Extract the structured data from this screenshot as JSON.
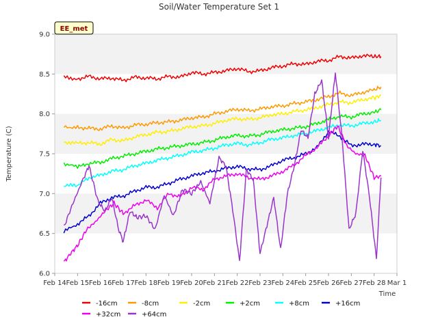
{
  "chart_data": {
    "type": "line",
    "title": "Soil/Water Temperature Set 1",
    "xlabel": "Time",
    "ylabel": "Temperature (C)",
    "badge": "EE_met",
    "ylim": [
      6.0,
      9.0
    ],
    "xlim": [
      "Feb 14",
      "Mar 1"
    ],
    "yticks": [
      "6.0",
      "6.5",
      "7.0",
      "7.5",
      "8.0",
      "8.5",
      "9.0"
    ],
    "xticks": [
      "Feb 14",
      "Feb 15",
      "Feb 16",
      "Feb 17",
      "Feb 18",
      "Feb 19",
      "Feb 20",
      "Feb 21",
      "Feb 22",
      "Feb 23",
      "Feb 24",
      "Feb 25",
      "Feb 26",
      "Feb 27",
      "Feb 28",
      "Mar 1"
    ],
    "legend_position": "bottom",
    "grid": "alternating bands",
    "series": [
      {
        "name": "-16cm",
        "color": "#ee0000",
        "x": [
          14.4,
          15.0,
          15.5,
          16.0,
          16.5,
          17.0,
          17.5,
          18.0,
          18.5,
          19.0,
          19.5,
          20.0,
          20.5,
          21.0,
          21.5,
          22.0,
          22.5,
          23.0,
          23.5,
          24.0,
          24.5,
          25.0,
          25.5,
          26.0,
          26.5,
          27.0,
          27.5,
          28.0,
          28.3
        ],
        "y": [
          8.46,
          8.44,
          8.47,
          8.44,
          8.45,
          8.42,
          8.46,
          8.45,
          8.44,
          8.47,
          8.46,
          8.52,
          8.5,
          8.52,
          8.54,
          8.57,
          8.53,
          8.54,
          8.58,
          8.6,
          8.63,
          8.62,
          8.66,
          8.67,
          8.72,
          8.7,
          8.73,
          8.72,
          8.72
        ]
      },
      {
        "name": "-8cm",
        "color": "#ff9900",
        "x": [
          14.4,
          15.0,
          15.5,
          16.0,
          16.5,
          17.0,
          17.5,
          18.0,
          18.5,
          19.0,
          19.5,
          20.0,
          20.5,
          21.0,
          21.5,
          22.0,
          22.5,
          23.0,
          23.5,
          24.0,
          24.5,
          25.0,
          25.5,
          26.0,
          26.5,
          27.0,
          27.5,
          28.0,
          28.3
        ],
        "y": [
          7.84,
          7.83,
          7.82,
          7.81,
          7.85,
          7.82,
          7.86,
          7.87,
          7.89,
          7.9,
          7.92,
          7.95,
          7.96,
          8.0,
          8.03,
          8.06,
          8.04,
          8.06,
          8.09,
          8.1,
          8.13,
          8.15,
          8.18,
          8.22,
          8.26,
          8.23,
          8.27,
          8.3,
          8.34
        ]
      },
      {
        "name": "-2cm",
        "color": "#ffee00",
        "x": [
          14.4,
          15.0,
          15.5,
          16.0,
          16.5,
          17.0,
          17.5,
          18.0,
          18.5,
          19.0,
          19.5,
          20.0,
          20.5,
          21.0,
          21.5,
          22.0,
          22.5,
          23.0,
          23.5,
          24.0,
          24.5,
          25.0,
          25.5,
          26.0,
          26.5,
          27.0,
          27.5,
          28.0,
          28.3
        ],
        "y": [
          7.65,
          7.63,
          7.64,
          7.62,
          7.68,
          7.66,
          7.71,
          7.74,
          7.77,
          7.78,
          7.81,
          7.84,
          7.85,
          7.88,
          7.92,
          7.94,
          7.93,
          7.95,
          7.99,
          8.0,
          8.03,
          8.05,
          8.08,
          8.12,
          8.15,
          8.14,
          8.18,
          8.2,
          8.23
        ]
      },
      {
        "name": "+2cm",
        "color": "#00ee00",
        "x": [
          14.4,
          15.0,
          15.5,
          16.0,
          16.5,
          17.0,
          17.5,
          18.0,
          18.5,
          19.0,
          19.5,
          20.0,
          20.5,
          21.0,
          21.5,
          22.0,
          22.5,
          23.0,
          23.5,
          24.0,
          24.5,
          25.0,
          25.5,
          26.0,
          26.5,
          27.0,
          27.5,
          28.0,
          28.3
        ],
        "y": [
          7.38,
          7.33,
          7.38,
          7.39,
          7.44,
          7.47,
          7.5,
          7.53,
          7.56,
          7.58,
          7.6,
          7.62,
          7.64,
          7.67,
          7.71,
          7.73,
          7.72,
          7.74,
          7.78,
          7.8,
          7.82,
          7.84,
          7.88,
          7.93,
          7.97,
          7.96,
          8.0,
          8.02,
          8.05
        ]
      },
      {
        "name": "+8cm",
        "color": "#00ffff",
        "x": [
          14.4,
          15.0,
          15.5,
          16.0,
          16.5,
          17.0,
          17.5,
          18.0,
          18.5,
          19.0,
          19.5,
          20.0,
          20.5,
          21.0,
          21.5,
          22.0,
          22.5,
          23.0,
          23.5,
          24.0,
          24.5,
          25.0,
          25.5,
          26.0,
          26.5,
          27.0,
          27.5,
          28.0,
          28.3
        ],
        "y": [
          7.1,
          7.1,
          7.2,
          7.23,
          7.28,
          7.3,
          7.35,
          7.38,
          7.42,
          7.45,
          7.48,
          7.52,
          7.54,
          7.57,
          7.61,
          7.63,
          7.61,
          7.64,
          7.68,
          7.7,
          7.73,
          7.75,
          7.79,
          7.83,
          7.86,
          7.85,
          7.88,
          7.9,
          7.92
        ]
      },
      {
        "name": "+16cm",
        "color": "#0000cc",
        "x": [
          14.4,
          15.0,
          15.5,
          16.0,
          16.5,
          17.0,
          17.5,
          18.0,
          18.5,
          19.0,
          19.5,
          20.0,
          20.5,
          21.0,
          21.5,
          22.0,
          22.5,
          23.0,
          23.5,
          24.0,
          24.5,
          25.0,
          25.5,
          26.0,
          26.5,
          27.0,
          27.5,
          28.0,
          28.3
        ],
        "y": [
          6.52,
          6.62,
          6.72,
          6.88,
          6.95,
          6.97,
          7.03,
          7.08,
          7.08,
          7.13,
          7.18,
          7.22,
          7.26,
          7.28,
          7.32,
          7.34,
          7.31,
          7.3,
          7.35,
          7.42,
          7.45,
          7.5,
          7.58,
          7.78,
          7.72,
          7.6,
          7.62,
          7.62,
          7.6
        ]
      },
      {
        "name": "+32cm",
        "color": "#ee00ee",
        "x": [
          14.4,
          14.7,
          15.0,
          15.4,
          15.8,
          16.2,
          16.6,
          17.0,
          17.5,
          18.0,
          18.5,
          19.0,
          19.5,
          20.0,
          20.5,
          21.0,
          21.5,
          22.0,
          22.5,
          23.0,
          23.5,
          24.0,
          24.5,
          25.0,
          25.5,
          26.0,
          26.4,
          26.8,
          27.2,
          27.6,
          28.0,
          28.3
        ],
        "y": [
          6.14,
          6.25,
          6.35,
          6.55,
          6.65,
          6.78,
          6.88,
          6.75,
          6.85,
          6.92,
          6.82,
          7.0,
          6.96,
          7.08,
          7.05,
          7.18,
          7.22,
          7.25,
          7.2,
          7.18,
          7.22,
          7.28,
          7.36,
          7.48,
          7.58,
          7.72,
          7.85,
          7.6,
          7.5,
          7.48,
          7.2,
          7.22
        ]
      },
      {
        "name": "+64cm",
        "color": "#9933cc",
        "x": [
          14.4,
          14.8,
          15.2,
          15.5,
          15.9,
          16.2,
          16.5,
          16.8,
          17.0,
          17.3,
          17.6,
          18.0,
          18.4,
          18.8,
          19.2,
          19.6,
          20.0,
          20.4,
          20.8,
          21.2,
          21.5,
          21.8,
          22.1,
          22.4,
          22.7,
          23.0,
          23.3,
          23.6,
          23.9,
          24.2,
          24.5,
          24.8,
          25.1,
          25.4,
          25.7,
          26.0,
          26.3,
          26.6,
          26.9,
          27.2,
          27.5,
          27.8,
          28.1,
          28.3
        ],
        "y": [
          6.58,
          6.88,
          7.15,
          7.35,
          6.9,
          6.78,
          6.95,
          6.55,
          6.4,
          6.78,
          6.7,
          6.72,
          6.55,
          6.98,
          6.72,
          7.05,
          7.0,
          7.15,
          6.88,
          7.45,
          7.35,
          6.8,
          6.15,
          7.3,
          7.18,
          6.25,
          6.6,
          6.95,
          6.3,
          7.0,
          7.35,
          7.8,
          7.7,
          8.25,
          8.42,
          7.7,
          8.52,
          7.68,
          6.55,
          6.75,
          7.55,
          6.95,
          6.18,
          7.2
        ]
      }
    ]
  }
}
